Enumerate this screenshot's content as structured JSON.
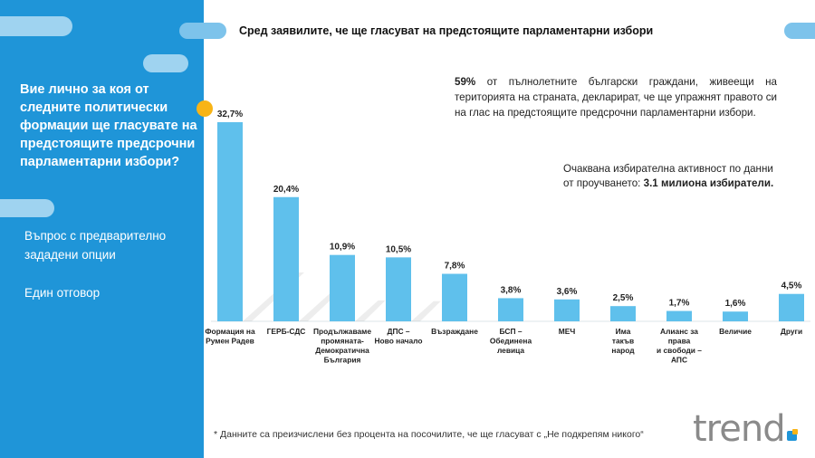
{
  "header": {
    "title": "Сред заявилите, че ще гласуват на предстоящите парламентарни избори"
  },
  "sidebar": {
    "question": "Вие лично за коя от следните политически формации ще гласувате на предстоящите предсрочни парламентарни избори?",
    "info_1_line_1": "Въпрос с предварително",
    "info_1_line_2": "зададени опции",
    "info_2": "Един отговор"
  },
  "stats": {
    "share_value": "59%",
    "share_text": " от пълнолетните български граждани, живеещи на територията на страната, декларират, че ще упражнят правото си на глас на предстоящите предсрочни парламентарни избори.",
    "turnout_text_line_1": "Очаквана избирателна активност по данни",
    "turnout_text_line_2": "от проучването: ",
    "turnout_value": "3.1 милиона избиратели."
  },
  "footnote": "* Данните са преизчислени без процента на посочилите, че ще гласуват с „Не подкрепям никого“",
  "logo": {
    "text": "trend"
  },
  "colors": {
    "bar": "#5fc0ec",
    "panel": "#1f95d8",
    "accent": "#f8b416"
  },
  "chart_data": {
    "type": "bar",
    "categories": [
      [
        "Формация на",
        "Румен Радев"
      ],
      [
        "ГЕРБ-СДС"
      ],
      [
        "Продължаваме",
        "промяната-",
        "Демократична",
        "България"
      ],
      [
        "ДПС –",
        "Ново начало"
      ],
      [
        "Възраждане"
      ],
      [
        "БСП –",
        "Обединена",
        "левица"
      ],
      [
        "МЕЧ"
      ],
      [
        "Има",
        "такъв",
        "народ"
      ],
      [
        "Алианс за",
        "права",
        "и свободи –",
        "АПС"
      ],
      [
        "Величие"
      ],
      [
        "Други"
      ]
    ],
    "values": [
      32.7,
      20.4,
      10.9,
      10.5,
      7.8,
      3.8,
      3.6,
      2.5,
      1.7,
      1.6,
      4.5
    ],
    "value_labels": [
      "32,7%",
      "20,4%",
      "10,9%",
      "10,5%",
      "7,8%",
      "3,8%",
      "3,6%",
      "2,5%",
      "1,7%",
      "1,6%",
      "4,5%"
    ],
    "ylim": [
      0,
      32.7
    ]
  }
}
